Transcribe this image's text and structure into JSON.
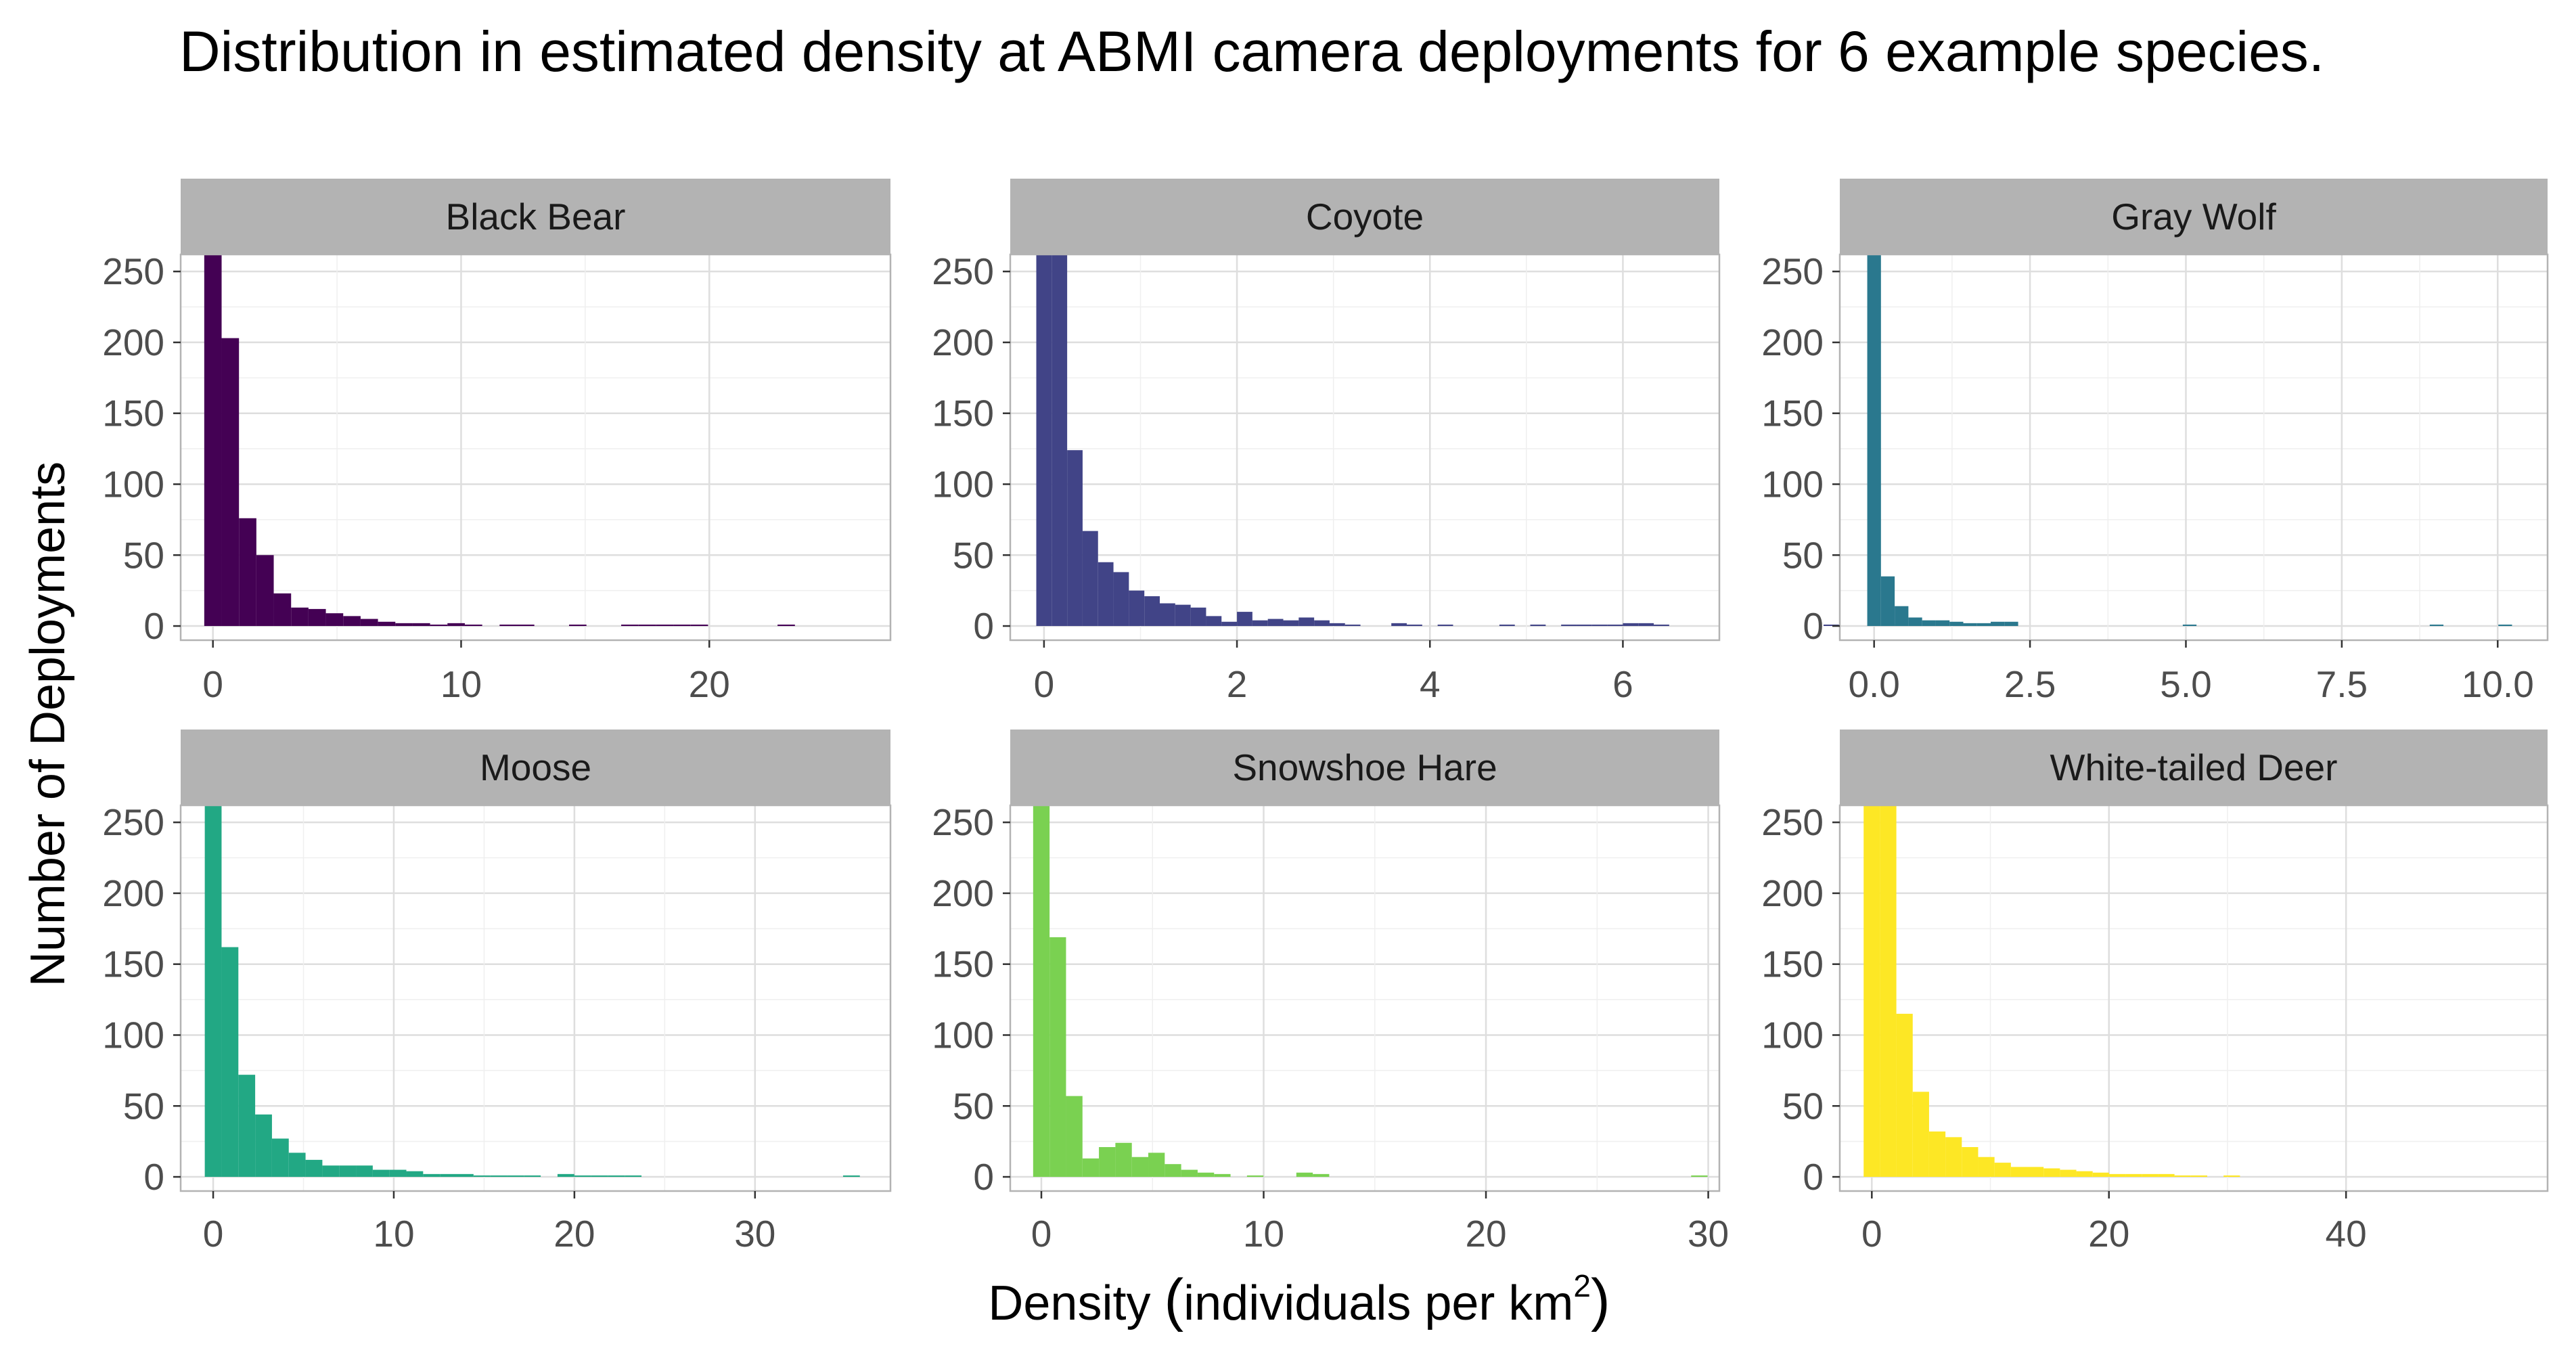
{
  "chart_data": {
    "type": "bar",
    "title": "Distribution in estimated density at ABMI camera deployments for 6 example species.",
    "xlabel_prefix": "Density ",
    "xlabel_main": "individuals per km",
    "xlabel_sup": "2",
    "ylabel": "Number of Deployments",
    "grid": true,
    "y_ticks": [
      0,
      50,
      100,
      150,
      200,
      250
    ],
    "ylim": [
      -10,
      262
    ],
    "panels": [
      {
        "name": "Black Bear",
        "color": "#440154",
        "xlim": [
          -1.3,
          27.3
        ],
        "x_ticks": [
          0,
          10,
          20
        ],
        "x_tick_labels": [
          "0",
          "10",
          "20"
        ],
        "bin_width": 0.7,
        "counts": [
          262,
          203,
          76,
          50,
          23,
          13,
          12,
          9,
          7,
          5,
          3,
          2,
          2,
          1,
          2,
          1,
          0,
          1,
          1,
          0,
          0,
          1,
          0,
          0,
          1,
          1,
          1,
          1,
          1,
          0,
          0,
          0,
          0,
          1,
          0,
          0,
          0,
          0,
          0,
          0,
          0,
          0,
          0,
          0,
          0,
          0,
          0,
          0,
          0,
          0,
          0,
          0,
          1,
          0,
          0,
          0,
          0,
          0,
          1
        ]
      },
      {
        "name": "Coyote",
        "color": "#414487",
        "xlim": [
          -0.35,
          7.0
        ],
        "x_ticks": [
          0,
          2,
          4,
          6
        ],
        "x_tick_labels": [
          "0",
          "2",
          "4",
          "6"
        ],
        "bin_width": 0.16,
        "counts": [
          262,
          262,
          124,
          67,
          45,
          38,
          25,
          21,
          16,
          15,
          13,
          7,
          3,
          10,
          4,
          5,
          4,
          6,
          4,
          2,
          1,
          0,
          0,
          2,
          1,
          0,
          1,
          0,
          0,
          0,
          1,
          0,
          1,
          0,
          1,
          1,
          1,
          1,
          2,
          2,
          1,
          0,
          0,
          0,
          0,
          0,
          0,
          0,
          0,
          0,
          0,
          1,
          0,
          0,
          0,
          1
        ]
      },
      {
        "name": "Gray Wolf",
        "color": "#2a788e",
        "xlim": [
          -0.55,
          10.8
        ],
        "x_ticks": [
          0,
          2.5,
          5,
          7.5,
          10
        ],
        "x_tick_labels": [
          "0.0",
          "2.5",
          "5.0",
          "7.5",
          "10.0"
        ],
        "bin_width": 0.22,
        "counts": [
          262,
          35,
          14,
          6,
          4,
          4,
          3,
          2,
          2,
          3,
          3,
          0,
          0,
          0,
          0,
          0,
          0,
          0,
          0,
          0,
          0,
          0,
          0,
          1,
          0,
          0,
          0,
          0,
          0,
          0,
          0,
          0,
          0,
          0,
          0,
          0,
          0,
          0,
          0,
          0,
          0,
          1,
          0,
          0,
          0,
          0,
          1,
          0,
          0,
          0,
          0,
          0,
          0,
          0,
          0,
          0,
          0,
          0,
          0,
          0,
          0,
          0,
          0,
          0,
          0,
          0,
          0,
          0,
          0,
          0,
          0,
          1
        ]
      },
      {
        "name": "Moose",
        "color": "#22a884",
        "xlim": [
          -1.8,
          37.5
        ],
        "x_ticks": [
          0,
          10,
          20,
          30
        ],
        "x_tick_labels": [
          "0",
          "10",
          "20",
          "30"
        ],
        "bin_width": 0.93,
        "counts": [
          262,
          162,
          72,
          44,
          27,
          17,
          12,
          8,
          8,
          8,
          5,
          5,
          4,
          2,
          2,
          2,
          1,
          1,
          1,
          1,
          0,
          2,
          1,
          1,
          1,
          1,
          0,
          0,
          0,
          0,
          0,
          0,
          0,
          0,
          0,
          0,
          0,
          0,
          1
        ]
      },
      {
        "name": "Snowshoe Hare",
        "color": "#7ad151",
        "xlim": [
          -1.4,
          30.5
        ],
        "x_ticks": [
          0,
          10,
          20,
          30
        ],
        "x_tick_labels": [
          "0",
          "10",
          "20",
          "30"
        ],
        "bin_width": 0.74,
        "counts": [
          262,
          169,
          57,
          13,
          21,
          24,
          14,
          17,
          9,
          5,
          3,
          2,
          0,
          1,
          0,
          0,
          3,
          2,
          0,
          0,
          0,
          0,
          0,
          0,
          0,
          0,
          0,
          0,
          0,
          0,
          0,
          0,
          0,
          0,
          0,
          0,
          0,
          0,
          0,
          0,
          1
        ]
      },
      {
        "name": "White-tailed Deer",
        "color": "#fde725",
        "xlim": [
          -2.7,
          57.0
        ],
        "x_ticks": [
          0,
          20,
          40
        ],
        "x_tick_labels": [
          "0",
          "20",
          "40"
        ],
        "bin_width": 1.38,
        "counts": [
          262,
          262,
          115,
          60,
          32,
          28,
          21,
          14,
          10,
          7,
          7,
          6,
          5,
          4,
          3,
          2,
          2,
          2,
          2,
          1,
          1,
          0,
          1,
          0,
          0,
          0,
          0,
          0,
          0,
          0,
          0,
          0,
          0,
          0,
          0,
          0,
          0,
          0,
          0,
          0,
          0,
          0,
          0,
          0,
          0,
          0,
          0,
          0,
          0,
          0,
          0,
          0,
          0,
          0,
          0,
          0,
          0,
          0,
          0,
          1
        ]
      }
    ]
  }
}
